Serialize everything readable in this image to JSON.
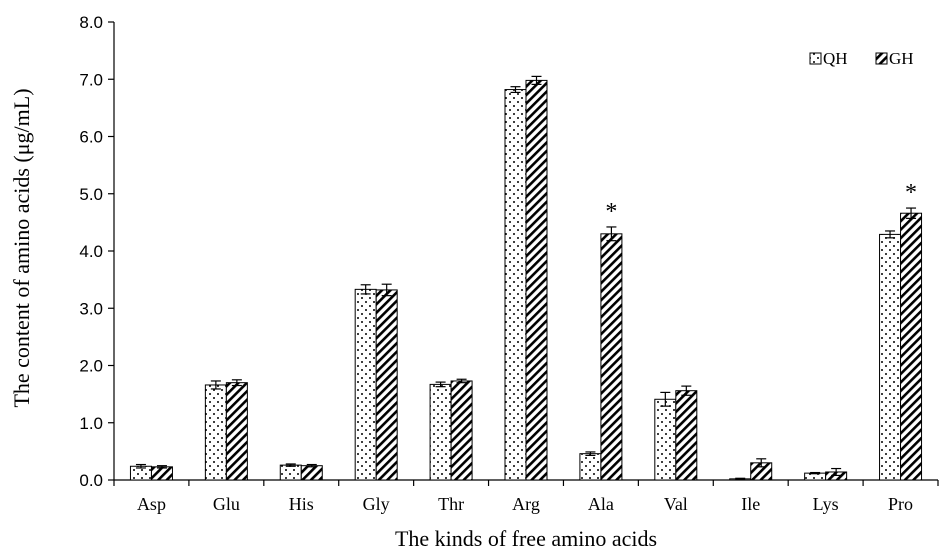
{
  "chart_data": {
    "type": "bar",
    "title": "",
    "xlabel": "The kinds of free amino acids",
    "ylabel": "The content of amino acids (μg/mL)",
    "ylim": [
      0,
      8
    ],
    "y_ticks": [
      "0.0",
      "1.0",
      "2.0",
      "3.0",
      "4.0",
      "5.0",
      "6.0",
      "7.0",
      "8.0"
    ],
    "grid": false,
    "legend_position": "top-right",
    "categories": [
      "Asp",
      "Glu",
      "His",
      "Gly",
      "Thr",
      "Arg",
      "Ala",
      "Val",
      "Ile",
      "Lys",
      "Pro"
    ],
    "series": [
      {
        "name": "QH",
        "pattern": "dots",
        "values": [
          0.24,
          1.66,
          0.26,
          3.33,
          1.67,
          6.82,
          0.46,
          1.41,
          0.02,
          0.12,
          4.29
        ],
        "errors": [
          0.03,
          0.07,
          0.02,
          0.08,
          0.04,
          0.05,
          0.03,
          0.12,
          0.01,
          0.01,
          0.06
        ]
      },
      {
        "name": "GH",
        "pattern": "diagonal",
        "values": [
          0.23,
          1.7,
          0.25,
          3.32,
          1.73,
          6.98,
          4.3,
          1.56,
          0.3,
          0.14,
          4.66
        ],
        "errors": [
          0.02,
          0.05,
          0.02,
          0.1,
          0.03,
          0.07,
          0.12,
          0.08,
          0.07,
          0.06,
          0.09
        ]
      }
    ],
    "annotations": [
      {
        "category": "Ala",
        "series": "GH",
        "text": "*"
      },
      {
        "category": "Pro",
        "series": "GH",
        "text": "*"
      }
    ]
  }
}
